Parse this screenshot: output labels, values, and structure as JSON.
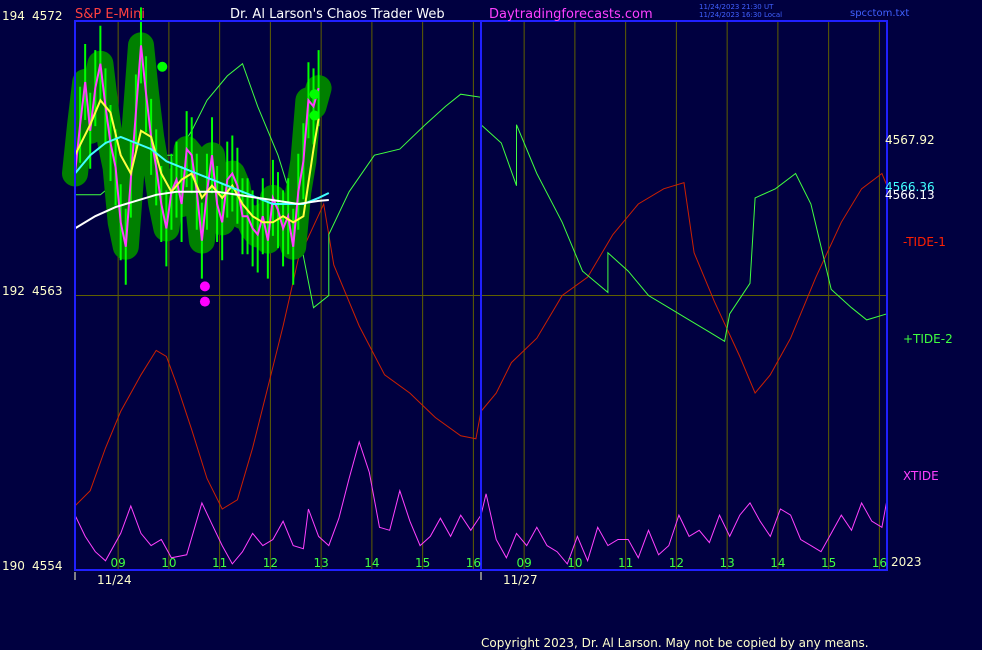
{
  "header": {
    "symbol": "S&P E-Mini",
    "title": "Dr. Al Larson's Chaos Trader Web",
    "site": "Daytradingforecasts.com",
    "timestamp_ut": "11/24/2023 21:30 UT",
    "timestamp_local": "11/24/2023 16:30 Local",
    "file": "spcctom.txt"
  },
  "footer": {
    "copyright": "Copyright 2023, Dr. Al Larson. May not be copied by any means."
  },
  "colors": {
    "background": "#000040",
    "frame": "#2020ff",
    "grid": "#606000",
    "tide1": "#cc2000",
    "tide2": "#40ff40",
    "xtide": "#ff40ff",
    "price": "#00ff00",
    "halo": "#008000",
    "average_fast": "#ffff40",
    "average_mid": "#40ffff",
    "average_slow": "#ffffff",
    "symbol_text": "#ff4040",
    "site_text": "#ff40ff",
    "axis_text": "#ffffcc",
    "day_text": "#40ff40"
  },
  "chart_data": {
    "type": "line",
    "y_axis_left": [
      {
        "index": "194",
        "price": "4572"
      },
      {
        "index": "192",
        "price": "4563"
      },
      {
        "index": "190",
        "price": "4554"
      }
    ],
    "ylim": [
      4554,
      4572
    ],
    "x_hours": [
      "09",
      "10",
      "11",
      "12",
      "13",
      "14",
      "15",
      "16",
      "09",
      "10",
      "11",
      "12",
      "13",
      "14",
      "15",
      "16"
    ],
    "x_dates": [
      "11/24",
      "11/27"
    ],
    "x_year": "2023",
    "right_labels": [
      {
        "text": "4567.92",
        "value": 4567.92,
        "color": "#ffffcc"
      },
      {
        "text": "4566.36",
        "value": 4566.36,
        "color": "#40ffff"
      },
      {
        "text": "4566.13",
        "value": 4566.13,
        "color": "#ffffff"
      }
    ],
    "series_labels": [
      {
        "text": "-TIDE-1",
        "color": "#ff2000"
      },
      {
        "text": "+TIDE-2",
        "color": "#40ff40"
      },
      {
        "text": "XTIDE",
        "color": "#ff40ff"
      }
    ],
    "tide1": [
      [
        0,
        4556.1
      ],
      [
        0.3,
        4556.6
      ],
      [
        0.6,
        4558.0
      ],
      [
        0.9,
        4559.2
      ],
      [
        1.3,
        4560.4
      ],
      [
        1.6,
        4561.2
      ],
      [
        1.8,
        4561.0
      ],
      [
        2.0,
        4560.1
      ],
      [
        2.3,
        4558.6
      ],
      [
        2.6,
        4557.0
      ],
      [
        2.9,
        4556.0
      ],
      [
        3.2,
        4556.3
      ],
      [
        3.5,
        4558.0
      ],
      [
        3.8,
        4560.0
      ],
      [
        4.1,
        4562.0
      ],
      [
        4.4,
        4564.2
      ],
      [
        4.9,
        4566.0
      ],
      [
        5.1,
        4564.0
      ],
      [
        5.6,
        4562.0
      ],
      [
        6.1,
        4560.4
      ],
      [
        6.6,
        4559.8
      ],
      [
        7.1,
        4559.0
      ],
      [
        7.6,
        4558.4
      ],
      [
        7.9,
        4558.3
      ],
      [
        8.0,
        4559.2
      ],
      [
        8.3,
        4559.8
      ],
      [
        8.6,
        4560.8
      ],
      [
        9.1,
        4561.6
      ],
      [
        9.6,
        4563.0
      ],
      [
        10.1,
        4563.6
      ],
      [
        10.6,
        4565.0
      ],
      [
        11.1,
        4566.0
      ],
      [
        11.6,
        4566.5
      ],
      [
        12.0,
        4566.7
      ],
      [
        12.2,
        4564.4
      ],
      [
        12.6,
        4562.8
      ],
      [
        13.1,
        4561.0
      ],
      [
        13.4,
        4559.8
      ],
      [
        13.7,
        4560.4
      ],
      [
        14.1,
        4561.6
      ],
      [
        14.6,
        4563.6
      ],
      [
        15.1,
        4565.4
      ],
      [
        15.5,
        4566.5
      ],
      [
        15.9,
        4567.0
      ],
      [
        16,
        4566.6
      ]
    ],
    "tide2": [
      [
        0,
        4566.3
      ],
      [
        0.5,
        4566.3
      ],
      [
        1.0,
        4567.0
      ],
      [
        1.5,
        4567.6
      ],
      [
        2.0,
        4567.6
      ],
      [
        2.3,
        4568.4
      ],
      [
        2.6,
        4569.4
      ],
      [
        3.0,
        4570.2
      ],
      [
        3.3,
        4570.6
      ],
      [
        3.6,
        4569.2
      ],
      [
        4.0,
        4567.6
      ],
      [
        4.3,
        4566.0
      ],
      [
        4.7,
        4562.6
      ],
      [
        5.0,
        4563.0
      ],
      [
        5.0,
        4565.0
      ],
      [
        5.4,
        4566.4
      ],
      [
        5.9,
        4567.6
      ],
      [
        6.4,
        4567.8
      ],
      [
        6.9,
        4568.6
      ],
      [
        7.3,
        4569.2
      ],
      [
        7.6,
        4569.6
      ],
      [
        8.0,
        4569.5
      ],
      [
        8.0,
        4568.6
      ],
      [
        8.4,
        4568.0
      ],
      [
        8.7,
        4566.6
      ],
      [
        8.7,
        4568.6
      ],
      [
        9.1,
        4567.0
      ],
      [
        9.6,
        4565.4
      ],
      [
        10.0,
        4563.8
      ],
      [
        10.5,
        4563.1
      ],
      [
        10.5,
        4564.4
      ],
      [
        10.9,
        4563.8
      ],
      [
        11.3,
        4563.0
      ],
      [
        11.7,
        4562.6
      ],
      [
        12.1,
        4562.2
      ],
      [
        12.5,
        4561.8
      ],
      [
        12.8,
        4561.5
      ],
      [
        12.9,
        4562.4
      ],
      [
        13.3,
        4563.4
      ],
      [
        13.4,
        4566.2
      ],
      [
        13.8,
        4566.5
      ],
      [
        14.2,
        4567.0
      ],
      [
        14.5,
        4566.0
      ],
      [
        14.9,
        4563.2
      ],
      [
        15.3,
        4562.6
      ],
      [
        15.6,
        4562.2
      ],
      [
        16,
        4562.4
      ]
    ],
    "xtide": [
      [
        0,
        4555.8
      ],
      [
        0.2,
        4555.1
      ],
      [
        0.4,
        4554.6
      ],
      [
        0.6,
        4554.3
      ],
      [
        0.9,
        4555.2
      ],
      [
        1.1,
        4556.1
      ],
      [
        1.3,
        4555.2
      ],
      [
        1.5,
        4554.8
      ],
      [
        1.7,
        4555.0
      ],
      [
        1.9,
        4554.4
      ],
      [
        2.2,
        4554.5
      ],
      [
        2.5,
        4556.2
      ],
      [
        2.7,
        4555.5
      ],
      [
        2.9,
        4554.8
      ],
      [
        3.1,
        4554.2
      ],
      [
        3.3,
        4554.6
      ],
      [
        3.5,
        4555.2
      ],
      [
        3.7,
        4554.8
      ],
      [
        3.9,
        4555.0
      ],
      [
        4.1,
        4555.6
      ],
      [
        4.3,
        4554.8
      ],
      [
        4.5,
        4554.7
      ],
      [
        4.6,
        4556.0
      ],
      [
        4.8,
        4555.1
      ],
      [
        5.0,
        4554.8
      ],
      [
        5.2,
        4555.7
      ],
      [
        5.4,
        4557.0
      ],
      [
        5.6,
        4558.2
      ],
      [
        5.8,
        4557.2
      ],
      [
        6.0,
        4555.4
      ],
      [
        6.2,
        4555.3
      ],
      [
        6.4,
        4556.6
      ],
      [
        6.6,
        4555.6
      ],
      [
        6.8,
        4554.8
      ],
      [
        7.0,
        4555.1
      ],
      [
        7.2,
        4555.7
      ],
      [
        7.4,
        4555.1
      ],
      [
        7.6,
        4555.8
      ],
      [
        7.8,
        4555.3
      ],
      [
        8.0,
        4555.8
      ],
      [
        8.1,
        4556.5
      ],
      [
        8.3,
        4555.0
      ],
      [
        8.5,
        4554.4
      ],
      [
        8.7,
        4555.2
      ],
      [
        8.9,
        4554.8
      ],
      [
        9.1,
        4555.4
      ],
      [
        9.3,
        4554.8
      ],
      [
        9.5,
        4554.6
      ],
      [
        9.7,
        4554.2
      ],
      [
        9.9,
        4555.1
      ],
      [
        10.1,
        4554.3
      ],
      [
        10.3,
        4555.4
      ],
      [
        10.5,
        4554.8
      ],
      [
        10.7,
        4555.0
      ],
      [
        10.9,
        4555.0
      ],
      [
        11.1,
        4554.4
      ],
      [
        11.3,
        4555.3
      ],
      [
        11.5,
        4554.5
      ],
      [
        11.7,
        4554.8
      ],
      [
        11.9,
        4555.8
      ],
      [
        12.1,
        4555.1
      ],
      [
        12.3,
        4555.3
      ],
      [
        12.5,
        4554.9
      ],
      [
        12.7,
        4555.8
      ],
      [
        12.9,
        4555.1
      ],
      [
        13.1,
        4555.8
      ],
      [
        13.3,
        4556.2
      ],
      [
        13.5,
        4555.6
      ],
      [
        13.7,
        4555.1
      ],
      [
        13.9,
        4556.0
      ],
      [
        14.1,
        4555.8
      ],
      [
        14.3,
        4555.0
      ],
      [
        14.5,
        4554.8
      ],
      [
        14.7,
        4554.6
      ],
      [
        14.9,
        4555.2
      ],
      [
        15.1,
        4555.8
      ],
      [
        15.3,
        4555.3
      ],
      [
        15.5,
        4556.2
      ],
      [
        15.7,
        4555.6
      ],
      [
        15.9,
        4555.4
      ],
      [
        16,
        4556.3
      ]
    ],
    "price": [
      [
        0,
        4567.0
      ],
      [
        0.1,
        4568.6
      ],
      [
        0.2,
        4570.0
      ],
      [
        0.3,
        4568.4
      ],
      [
        0.4,
        4569.8
      ],
      [
        0.5,
        4570.6
      ],
      [
        0.6,
        4569.2
      ],
      [
        0.7,
        4568.0
      ],
      [
        0.8,
        4567.2
      ],
      [
        0.9,
        4565.4
      ],
      [
        1.0,
        4564.6
      ],
      [
        1.1,
        4566.8
      ],
      [
        1.2,
        4569.0
      ],
      [
        1.3,
        4571.2
      ],
      [
        1.4,
        4569.6
      ],
      [
        1.5,
        4568.2
      ],
      [
        1.6,
        4567.2
      ],
      [
        1.7,
        4566.0
      ],
      [
        1.8,
        4565.2
      ],
      [
        1.9,
        4566.4
      ],
      [
        2.0,
        4566.8
      ],
      [
        2.1,
        4566.0
      ],
      [
        2.2,
        4567.8
      ],
      [
        2.3,
        4567.6
      ],
      [
        2.4,
        4566.4
      ],
      [
        2.5,
        4564.8
      ],
      [
        2.6,
        4566.4
      ],
      [
        2.7,
        4567.6
      ],
      [
        2.8,
        4566.0
      ],
      [
        2.9,
        4565.4
      ],
      [
        3.0,
        4566.8
      ],
      [
        3.1,
        4567.0
      ],
      [
        3.2,
        4566.6
      ],
      [
        3.3,
        4565.6
      ],
      [
        3.4,
        4565.6
      ],
      [
        3.5,
        4565.2
      ],
      [
        3.6,
        4565.0
      ],
      [
        3.7,
        4565.6
      ],
      [
        3.8,
        4564.8
      ],
      [
        3.9,
        4566.2
      ],
      [
        4.0,
        4565.8
      ],
      [
        4.1,
        4565.2
      ],
      [
        4.2,
        4565.6
      ],
      [
        4.3,
        4564.6
      ],
      [
        4.4,
        4566.4
      ],
      [
        4.5,
        4567.4
      ],
      [
        4.6,
        4569.4
      ],
      [
        4.7,
        4569.2
      ],
      [
        4.8,
        4569.8
      ]
    ],
    "average_fast": [
      [
        0,
        4567.6
      ],
      [
        0.3,
        4568.6
      ],
      [
        0.5,
        4569.4
      ],
      [
        0.7,
        4569.0
      ],
      [
        0.9,
        4567.6
      ],
      [
        1.1,
        4567.0
      ],
      [
        1.3,
        4568.4
      ],
      [
        1.5,
        4568.2
      ],
      [
        1.7,
        4567.0
      ],
      [
        1.9,
        4566.4
      ],
      [
        2.1,
        4566.8
      ],
      [
        2.3,
        4567.0
      ],
      [
        2.5,
        4566.2
      ],
      [
        2.7,
        4566.6
      ],
      [
        2.9,
        4566.2
      ],
      [
        3.1,
        4566.6
      ],
      [
        3.3,
        4566.0
      ],
      [
        3.5,
        4565.6
      ],
      [
        3.7,
        4565.4
      ],
      [
        3.9,
        4565.4
      ],
      [
        4.1,
        4565.6
      ],
      [
        4.3,
        4565.4
      ],
      [
        4.5,
        4565.6
      ],
      [
        4.7,
        4567.8
      ],
      [
        4.8,
        4568.8
      ]
    ],
    "average_mid": [
      [
        0,
        4567.0
      ],
      [
        0.3,
        4567.6
      ],
      [
        0.6,
        4568.0
      ],
      [
        0.9,
        4568.2
      ],
      [
        1.2,
        4568.0
      ],
      [
        1.5,
        4567.8
      ],
      [
        1.8,
        4567.4
      ],
      [
        2.1,
        4567.2
      ],
      [
        2.4,
        4567.0
      ],
      [
        2.7,
        4566.8
      ],
      [
        3.0,
        4566.6
      ],
      [
        3.3,
        4566.4
      ],
      [
        3.6,
        4566.2
      ],
      [
        3.9,
        4566.0
      ],
      [
        4.2,
        4566.0
      ],
      [
        4.5,
        4566.0
      ],
      [
        4.8,
        4566.2
      ],
      [
        5.0,
        4566.36
      ]
    ],
    "average_slow": [
      [
        0,
        4565.2
      ],
      [
        0.4,
        4565.6
      ],
      [
        0.8,
        4565.9
      ],
      [
        1.2,
        4566.1
      ],
      [
        1.6,
        4566.3
      ],
      [
        2.0,
        4566.4
      ],
      [
        2.4,
        4566.4
      ],
      [
        2.8,
        4566.4
      ],
      [
        3.2,
        4566.3
      ],
      [
        3.6,
        4566.2
      ],
      [
        4.0,
        4566.1
      ],
      [
        4.4,
        4566.0
      ],
      [
        4.8,
        4566.1
      ],
      [
        5.0,
        4566.13
      ]
    ],
    "markers": [
      {
        "x": 1.72,
        "y": 4570.5,
        "color": "#00ff00"
      },
      {
        "x": 4.72,
        "y": 4569.6,
        "color": "#00ff00"
      },
      {
        "x": 4.72,
        "y": 4568.9,
        "color": "#00ff00"
      },
      {
        "x": 2.56,
        "y": 4563.3,
        "color": "#ff00ff"
      },
      {
        "x": 2.56,
        "y": 4562.8,
        "color": "#ff00ff"
      }
    ],
    "grid": true
  }
}
